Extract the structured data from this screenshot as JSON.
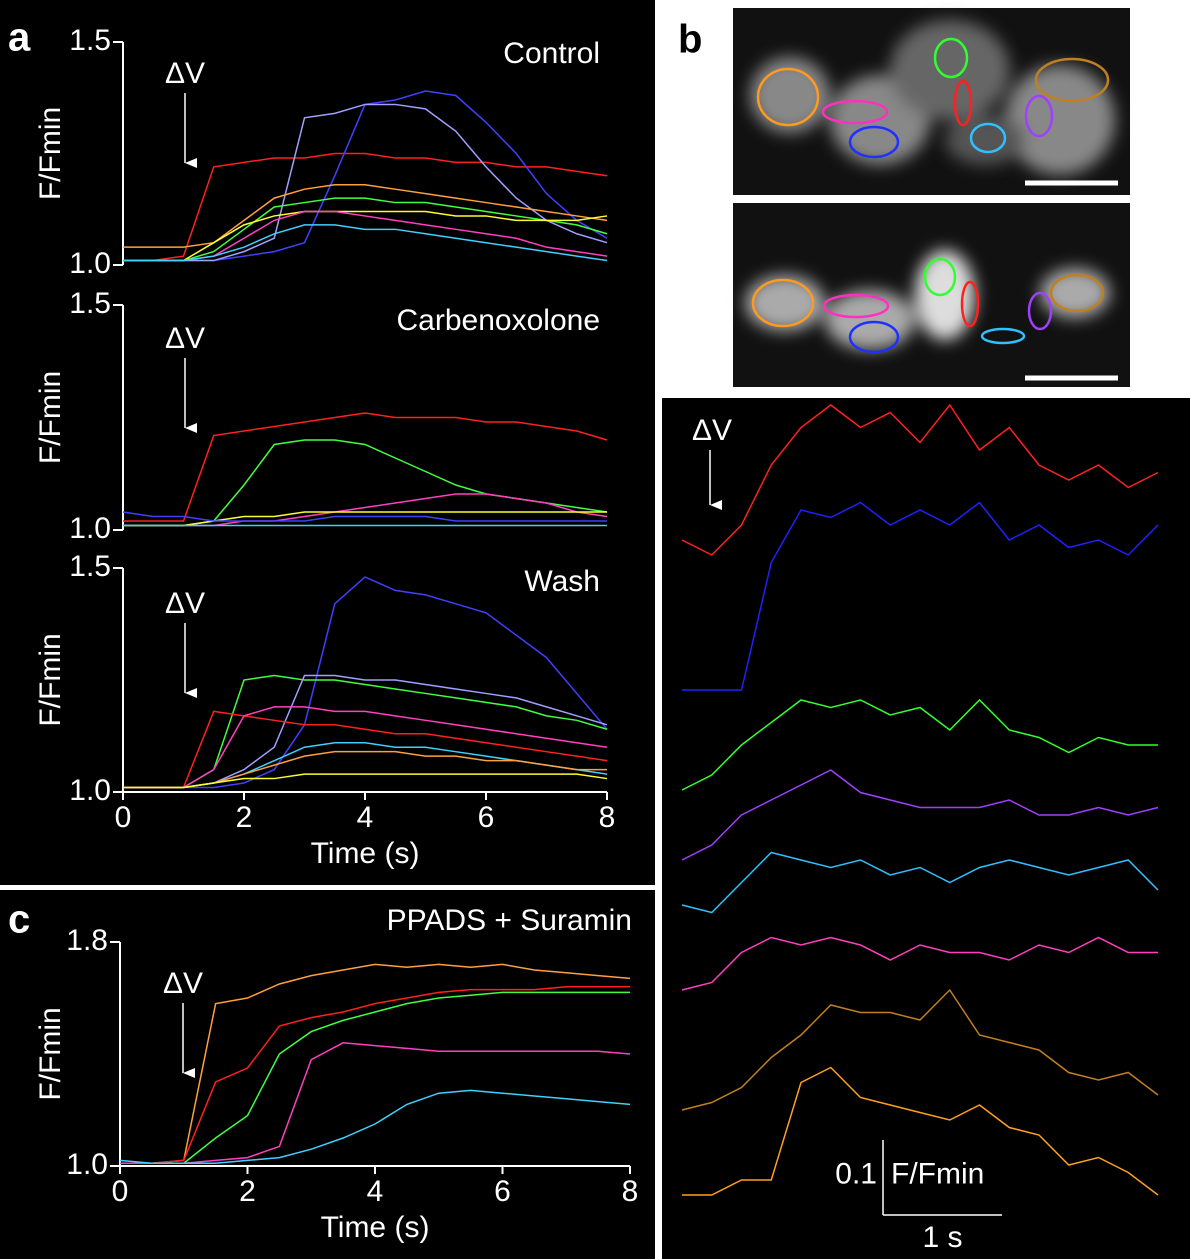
{
  "panel_labels": [
    "a",
    "b",
    "c"
  ],
  "chart_data": [
    {
      "type": "line",
      "title": "Control",
      "ylabel": "F/Fmin",
      "annotation": "ΔV",
      "xlim": [
        0,
        8
      ],
      "ylim": [
        1.0,
        1.5
      ],
      "yticks": [
        {
          "value": 1.0,
          "label": "1.0"
        },
        1.5
      ],
      "x": [
        0,
        0.5,
        1,
        1.5,
        2,
        2.5,
        3,
        3.5,
        4,
        4.5,
        5,
        5.5,
        6,
        6.5,
        7,
        7.5,
        8
      ],
      "series": [
        {
          "color": "#ff2020",
          "values": [
            1.01,
            1.01,
            1.02,
            1.22,
            1.23,
            1.24,
            1.24,
            1.25,
            1.25,
            1.24,
            1.24,
            1.23,
            1.23,
            1.22,
            1.22,
            1.21,
            1.2
          ]
        },
        {
          "color": "#4040ff",
          "values": [
            1.01,
            1.01,
            1.01,
            1.01,
            1.02,
            1.03,
            1.05,
            1.2,
            1.36,
            1.37,
            1.39,
            1.38,
            1.32,
            1.25,
            1.16,
            1.1,
            1.06
          ]
        },
        {
          "color": "#a0a0ff",
          "values": [
            1.01,
            1.01,
            1.01,
            1.01,
            1.03,
            1.06,
            1.33,
            1.34,
            1.36,
            1.36,
            1.35,
            1.3,
            1.22,
            1.15,
            1.1,
            1.07,
            1.05
          ]
        },
        {
          "color": "#ffa040",
          "values": [
            1.04,
            1.04,
            1.04,
            1.05,
            1.1,
            1.15,
            1.17,
            1.18,
            1.18,
            1.17,
            1.16,
            1.15,
            1.14,
            1.13,
            1.12,
            1.11,
            1.1
          ]
        },
        {
          "color": "#40ff40",
          "values": [
            1.01,
            1.01,
            1.01,
            1.03,
            1.08,
            1.13,
            1.14,
            1.15,
            1.15,
            1.14,
            1.14,
            1.13,
            1.12,
            1.11,
            1.1,
            1.09,
            1.07
          ]
        },
        {
          "color": "#ffff30",
          "values": [
            1.01,
            1.01,
            1.01,
            1.05,
            1.09,
            1.11,
            1.12,
            1.12,
            1.12,
            1.12,
            1.12,
            1.11,
            1.11,
            1.1,
            1.1,
            1.1,
            1.11
          ]
        },
        {
          "color": "#ff40c0",
          "values": [
            1.01,
            1.01,
            1.01,
            1.02,
            1.06,
            1.1,
            1.12,
            1.12,
            1.11,
            1.1,
            1.09,
            1.08,
            1.07,
            1.06,
            1.04,
            1.03,
            1.02
          ]
        },
        {
          "color": "#40d0ff",
          "values": [
            1.01,
            1.01,
            1.01,
            1.02,
            1.04,
            1.07,
            1.09,
            1.09,
            1.08,
            1.08,
            1.07,
            1.06,
            1.05,
            1.04,
            1.03,
            1.02,
            1.01
          ]
        }
      ]
    },
    {
      "type": "line",
      "title": "Carbenoxolone",
      "ylabel": "F/Fmin",
      "annotation": "ΔV",
      "xlim": [
        0,
        8
      ],
      "ylim": [
        1.0,
        1.5
      ],
      "yticks": [
        {
          "value": 1.0,
          "label": "1.0"
        },
        1.5
      ],
      "x": [
        0,
        0.5,
        1,
        1.5,
        2,
        2.5,
        3,
        3.5,
        4,
        4.5,
        5,
        5.5,
        6,
        6.5,
        7,
        7.5,
        8
      ],
      "series": [
        {
          "color": "#ff2020",
          "values": [
            1.02,
            1.02,
            1.02,
            1.21,
            1.22,
            1.23,
            1.24,
            1.25,
            1.26,
            1.25,
            1.25,
            1.25,
            1.24,
            1.24,
            1.23,
            1.22,
            1.2
          ]
        },
        {
          "color": "#40ff40",
          "values": [
            1.01,
            1.01,
            1.01,
            1.02,
            1.1,
            1.19,
            1.2,
            1.2,
            1.19,
            1.16,
            1.13,
            1.1,
            1.08,
            1.07,
            1.06,
            1.05,
            1.04
          ]
        },
        {
          "color": "#ff40c0",
          "values": [
            1.01,
            1.01,
            1.01,
            1.01,
            1.02,
            1.02,
            1.03,
            1.04,
            1.05,
            1.06,
            1.07,
            1.08,
            1.08,
            1.07,
            1.06,
            1.04,
            1.03
          ]
        },
        {
          "color": "#ffff30",
          "values": [
            1.01,
            1.01,
            1.01,
            1.02,
            1.03,
            1.03,
            1.04,
            1.04,
            1.04,
            1.04,
            1.04,
            1.04,
            1.04,
            1.04,
            1.04,
            1.04,
            1.04
          ]
        },
        {
          "color": "#4040ff",
          "values": [
            1.04,
            1.03,
            1.03,
            1.02,
            1.02,
            1.02,
            1.02,
            1.03,
            1.03,
            1.03,
            1.03,
            1.02,
            1.02,
            1.02,
            1.02,
            1.02,
            1.02
          ]
        },
        {
          "color": "#40d0ff",
          "values": [
            1.01,
            1.01,
            1.01,
            1.01,
            1.01,
            1.01,
            1.01,
            1.01,
            1.01,
            1.01,
            1.01,
            1.01,
            1.01,
            1.01,
            1.01,
            1.01,
            1.01
          ]
        }
      ]
    },
    {
      "type": "line",
      "title": "Wash",
      "ylabel": "F/Fmin",
      "annotation": "ΔV",
      "xlabel": "Time (s)",
      "xlim": [
        0,
        8
      ],
      "xticks": [
        0,
        2,
        4,
        6,
        8
      ],
      "ylim": [
        1.0,
        1.5
      ],
      "yticks": [
        {
          "value": 1.0,
          "label": "1.0"
        },
        1.5
      ],
      "x": [
        0,
        0.5,
        1,
        1.5,
        2,
        2.5,
        3,
        3.5,
        4,
        4.5,
        5,
        5.5,
        6,
        6.5,
        7,
        7.5,
        8
      ],
      "series": [
        {
          "color": "#4040ff",
          "values": [
            1.01,
            1.01,
            1.01,
            1.01,
            1.02,
            1.05,
            1.15,
            1.42,
            1.48,
            1.45,
            1.44,
            1.42,
            1.4,
            1.35,
            1.3,
            1.22,
            1.14
          ]
        },
        {
          "color": "#40ff40",
          "values": [
            1.01,
            1.01,
            1.01,
            1.05,
            1.25,
            1.26,
            1.25,
            1.25,
            1.24,
            1.23,
            1.22,
            1.21,
            1.2,
            1.19,
            1.17,
            1.16,
            1.14
          ]
        },
        {
          "color": "#a0a0ff",
          "values": [
            1.01,
            1.01,
            1.01,
            1.02,
            1.05,
            1.1,
            1.26,
            1.26,
            1.25,
            1.25,
            1.24,
            1.23,
            1.22,
            1.21,
            1.19,
            1.17,
            1.15
          ]
        },
        {
          "color": "#ff2020",
          "values": [
            1.01,
            1.01,
            1.01,
            1.18,
            1.17,
            1.16,
            1.15,
            1.15,
            1.14,
            1.13,
            1.13,
            1.12,
            1.11,
            1.1,
            1.09,
            1.08,
            1.07
          ]
        },
        {
          "color": "#ff40c0",
          "values": [
            1.01,
            1.01,
            1.01,
            1.05,
            1.17,
            1.19,
            1.19,
            1.18,
            1.18,
            1.17,
            1.16,
            1.15,
            1.14,
            1.13,
            1.12,
            1.11,
            1.1
          ]
        },
        {
          "color": "#40d0ff",
          "values": [
            1.01,
            1.01,
            1.01,
            1.02,
            1.04,
            1.07,
            1.1,
            1.11,
            1.11,
            1.1,
            1.1,
            1.09,
            1.08,
            1.07,
            1.06,
            1.05,
            1.04
          ]
        },
        {
          "color": "#ffa040",
          "values": [
            1.01,
            1.01,
            1.01,
            1.02,
            1.04,
            1.06,
            1.08,
            1.09,
            1.09,
            1.09,
            1.08,
            1.08,
            1.07,
            1.07,
            1.06,
            1.05,
            1.05
          ]
        },
        {
          "color": "#ffff30",
          "values": [
            1.01,
            1.01,
            1.01,
            1.02,
            1.03,
            1.03,
            1.04,
            1.04,
            1.04,
            1.04,
            1.04,
            1.04,
            1.04,
            1.04,
            1.04,
            1.04,
            1.03
          ]
        }
      ]
    },
    {
      "type": "line",
      "title": "PPADS + Suramin",
      "ylabel": "F/Fmin",
      "annotation": "ΔV",
      "xlabel": "Time (s)",
      "xlim": [
        0,
        8
      ],
      "xticks": [
        0,
        2,
        4,
        6,
        8
      ],
      "ylim": [
        1.0,
        1.8
      ],
      "yticks": [
        {
          "value": 1.0,
          "label": "1.0"
        },
        1.8
      ],
      "x": [
        0,
        0.5,
        1,
        1.5,
        2,
        2.5,
        3,
        3.5,
        4,
        4.5,
        5,
        5.5,
        6,
        6.5,
        7,
        7.5,
        8
      ],
      "series": [
        {
          "color": "#ffa040",
          "values": [
            1.01,
            1.01,
            1.02,
            1.58,
            1.6,
            1.65,
            1.68,
            1.7,
            1.72,
            1.71,
            1.72,
            1.71,
            1.72,
            1.7,
            1.69,
            1.68,
            1.67
          ]
        },
        {
          "color": "#ff2020",
          "values": [
            1.01,
            1.01,
            1.02,
            1.3,
            1.35,
            1.5,
            1.53,
            1.55,
            1.58,
            1.6,
            1.62,
            1.63,
            1.63,
            1.63,
            1.64,
            1.64,
            1.64
          ]
        },
        {
          "color": "#40ff40",
          "values": [
            1.01,
            1.01,
            1.01,
            1.1,
            1.18,
            1.4,
            1.48,
            1.52,
            1.55,
            1.58,
            1.6,
            1.61,
            1.62,
            1.62,
            1.62,
            1.62,
            1.62
          ]
        },
        {
          "color": "#ff40c0",
          "values": [
            1.01,
            1.01,
            1.01,
            1.02,
            1.03,
            1.07,
            1.38,
            1.44,
            1.43,
            1.42,
            1.41,
            1.41,
            1.41,
            1.41,
            1.41,
            1.41,
            1.4
          ]
        },
        {
          "color": "#40d0ff",
          "values": [
            1.02,
            1.01,
            1.01,
            1.01,
            1.02,
            1.03,
            1.06,
            1.1,
            1.15,
            1.22,
            1.26,
            1.27,
            1.26,
            1.25,
            1.24,
            1.23,
            1.22
          ]
        }
      ]
    },
    {
      "type": "traces",
      "annotation": "ΔV",
      "xlim": [
        0,
        4
      ],
      "scalebar": {
        "y": 0.1,
        "y_unit": "F/Fmin",
        "x": {
          "value": 1,
          "label": "1 s"
        }
      },
      "x": [
        0,
        0.25,
        0.5,
        0.75,
        1,
        1.25,
        1.5,
        1.75,
        2,
        2.25,
        2.5,
        2.75,
        3,
        3.25,
        3.5,
        3.75,
        4
      ],
      "series": [
        {
          "color": "#ff2020",
          "values": [
            1.0,
            0.98,
            1.02,
            1.1,
            1.15,
            1.18,
            1.15,
            1.17,
            1.13,
            1.18,
            1.12,
            1.15,
            1.1,
            1.08,
            1.1,
            1.07,
            1.09
          ]
        },
        {
          "color": "#2020ff",
          "values": [
            1.0,
            1.0,
            1.0,
            1.17,
            1.24,
            1.23,
            1.25,
            1.22,
            1.24,
            1.22,
            1.25,
            1.2,
            1.22,
            1.19,
            1.2,
            1.18,
            1.22
          ]
        },
        {
          "color": "#30ff30",
          "values": [
            1.0,
            1.02,
            1.06,
            1.09,
            1.12,
            1.11,
            1.12,
            1.1,
            1.11,
            1.08,
            1.12,
            1.08,
            1.07,
            1.05,
            1.07,
            1.06,
            1.06
          ]
        },
        {
          "color": "#a040ff",
          "values": [
            1.0,
            1.02,
            1.06,
            1.08,
            1.1,
            1.12,
            1.09,
            1.08,
            1.07,
            1.07,
            1.07,
            1.08,
            1.06,
            1.06,
            1.07,
            1.06,
            1.07
          ]
        },
        {
          "color": "#30c0ff",
          "values": [
            1.0,
            0.99,
            1.03,
            1.07,
            1.06,
            1.05,
            1.06,
            1.04,
            1.05,
            1.03,
            1.05,
            1.06,
            1.05,
            1.04,
            1.05,
            1.06,
            1.02
          ]
        },
        {
          "color": "#ff40c0",
          "values": [
            1.0,
            1.01,
            1.05,
            1.07,
            1.06,
            1.07,
            1.06,
            1.04,
            1.06,
            1.05,
            1.05,
            1.04,
            1.06,
            1.05,
            1.07,
            1.05,
            1.05
          ]
        },
        {
          "color": "#c08020",
          "values": [
            1.0,
            1.01,
            1.03,
            1.07,
            1.1,
            1.14,
            1.13,
            1.13,
            1.12,
            1.16,
            1.1,
            1.09,
            1.08,
            1.05,
            1.04,
            1.05,
            1.02
          ]
        },
        {
          "color": "#ffa020",
          "values": [
            1.0,
            1.0,
            1.02,
            1.02,
            1.15,
            1.17,
            1.13,
            1.12,
            1.11,
            1.1,
            1.12,
            1.09,
            1.08,
            1.04,
            1.05,
            1.03,
            1.0
          ]
        }
      ]
    }
  ]
}
